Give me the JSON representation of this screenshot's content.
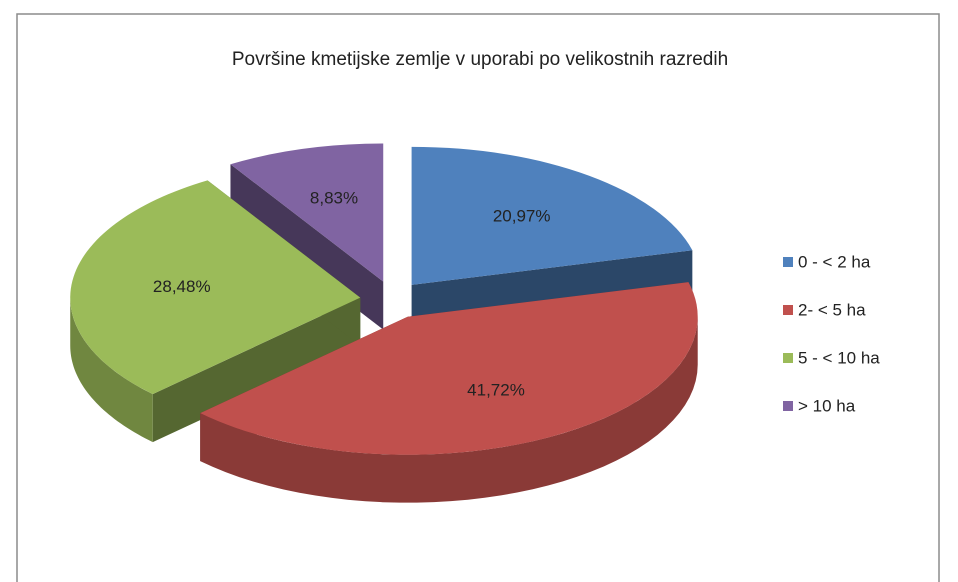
{
  "chart_data": {
    "type": "pie",
    "title": "Površine kmetijske zemlje v uporabi po velikostnih razredih",
    "categories": [
      "0 - < 2 ha",
      "2- < 5 ha",
      "5 - < 10 ha",
      "> 10 ha"
    ],
    "values": [
      20.97,
      41.72,
      28.48,
      8.83
    ],
    "value_labels": [
      "20,97%",
      "41,72%",
      "28,48%",
      "8,83%"
    ],
    "colors": [
      "#4f81bd",
      "#c0504d",
      "#9bbb59",
      "#8064a2"
    ],
    "legend": "right"
  }
}
